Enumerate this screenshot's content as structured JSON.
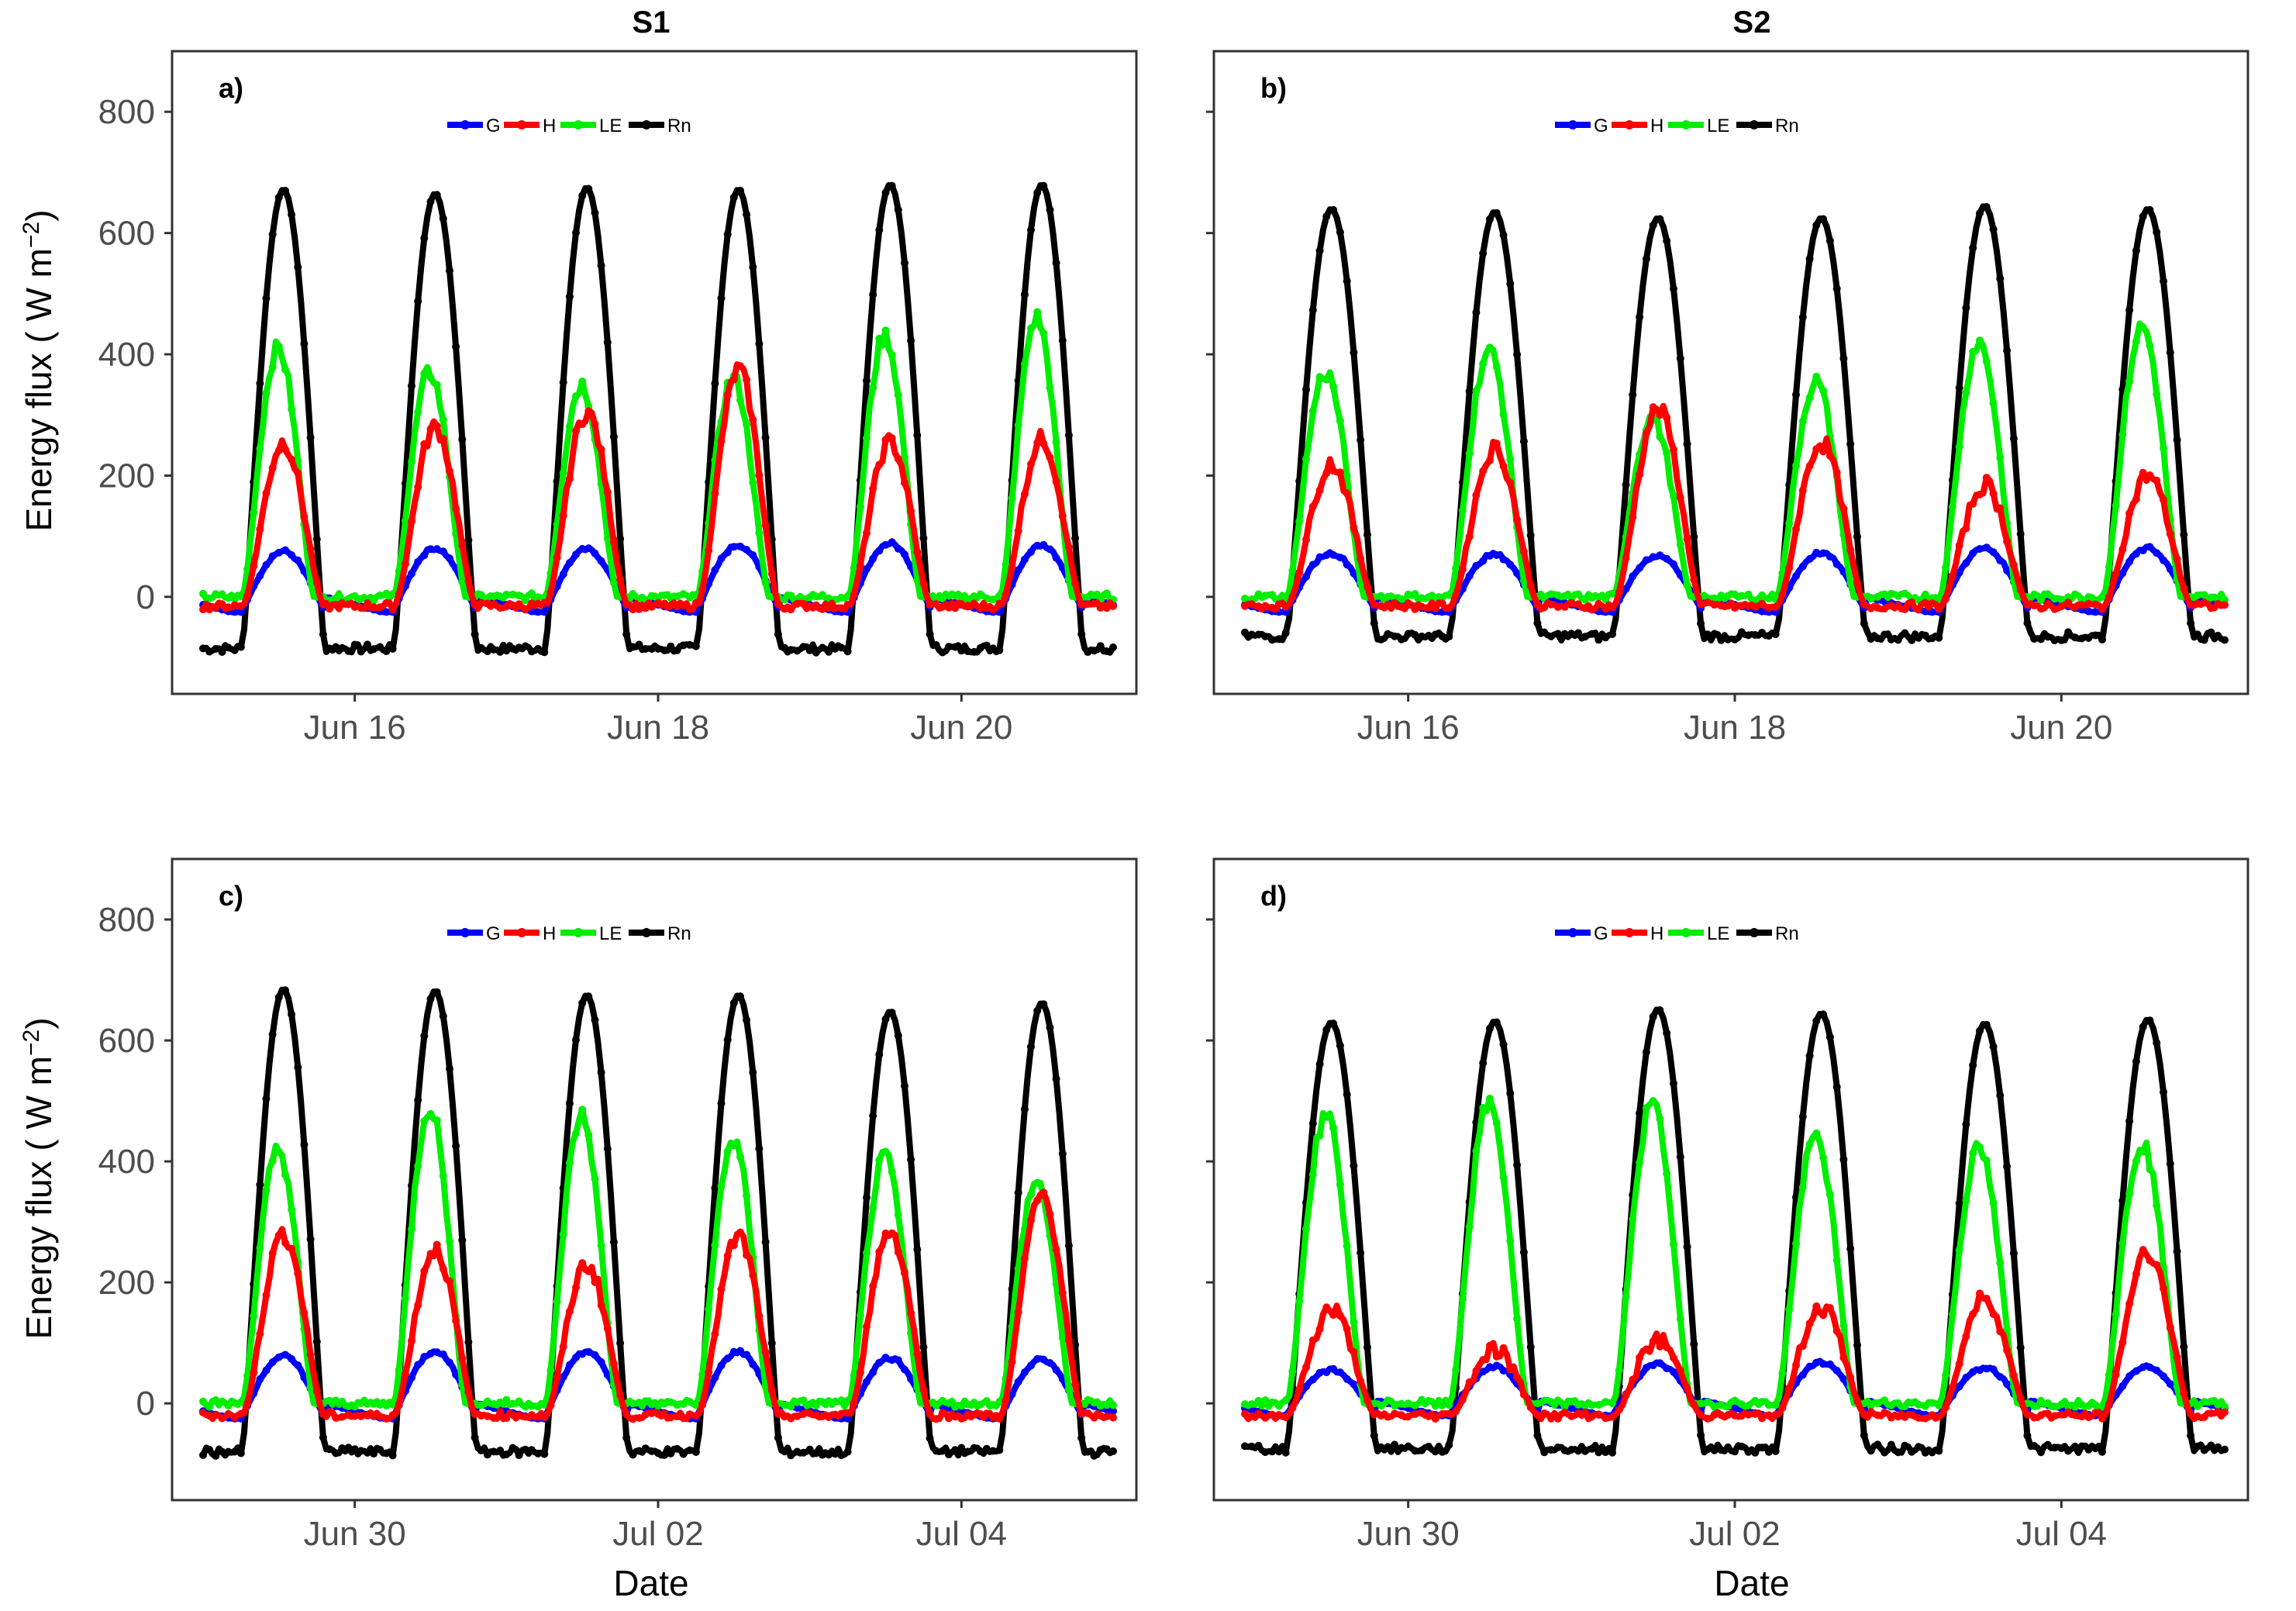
{
  "figure": {
    "columns": [
      "S1",
      "S2"
    ],
    "ylabel": "Energy flux ( W m",
    "ylabel_sup": "−2",
    "ylabel_end": ")",
    "xlabel": "Date"
  },
  "colors": {
    "G": "#0000ff",
    "H": "#ff0000",
    "LE": "#00ee00",
    "Rn": "#000000"
  },
  "chart_data": [
    {
      "panel": "a)",
      "column": "S1",
      "type": "line",
      "x_ticks": [
        "Jun 16",
        "Jun 18",
        "Jun 20"
      ],
      "x_range_days": [
        0,
        6
      ],
      "tick_days": [
        1.0,
        3.0,
        5.0
      ],
      "ylim": [
        -160,
        900
      ],
      "y_ticks": [
        0,
        200,
        400,
        600,
        800
      ],
      "legend": [
        "G",
        "H",
        "LE",
        "Rn"
      ],
      "series": [
        {
          "name": "Rn",
          "night": -85,
          "peaks": [
            672,
            665,
            675,
            672,
            680,
            680
          ]
        },
        {
          "name": "LE",
          "night": 0,
          "peaks": [
            410,
            370,
            350,
            360,
            430,
            460
          ]
        },
        {
          "name": "H",
          "night": -15,
          "peaks": [
            255,
            280,
            305,
            375,
            255,
            260
          ]
        },
        {
          "name": "G",
          "night": -25,
          "peaks": [
            75,
            80,
            78,
            85,
            88,
            85
          ]
        }
      ]
    },
    {
      "panel": "b)",
      "column": "S2",
      "type": "line",
      "x_ticks": [
        "Jun 16",
        "Jun 18",
        "Jun 20"
      ],
      "x_range_days": [
        0,
        6
      ],
      "tick_days": [
        1.0,
        3.0,
        5.0
      ],
      "ylim": [
        -160,
        900
      ],
      "y_ticks": [
        0,
        200,
        400,
        600,
        800
      ],
      "legend": [
        "G",
        "H",
        "LE",
        "Rn"
      ],
      "series": [
        {
          "name": "Rn",
          "night": -65,
          "peaks": [
            640,
            635,
            625,
            625,
            645,
            640
          ]
        },
        {
          "name": "LE",
          "night": 0,
          "peaks": [
            370,
            405,
            295,
            355,
            420,
            445
          ]
        },
        {
          "name": "H",
          "night": -15,
          "peaks": [
            220,
            245,
            310,
            255,
            185,
            200
          ]
        },
        {
          "name": "G",
          "night": -25,
          "peaks": [
            72,
            70,
            68,
            72,
            80,
            80
          ]
        }
      ]
    },
    {
      "panel": "c)",
      "column": "S1",
      "type": "line",
      "x_ticks": [
        "Jun 30",
        "Jul 02",
        "Jul 04"
      ],
      "x_range_days": [
        0,
        6
      ],
      "tick_days": [
        1.0,
        3.0,
        5.0
      ],
      "ylim": [
        -160,
        900
      ],
      "y_ticks": [
        0,
        200,
        400,
        600,
        800
      ],
      "legend": [
        "G",
        "H",
        "LE",
        "Rn"
      ],
      "series": [
        {
          "name": "Rn",
          "night": -80,
          "peaks": [
            685,
            682,
            675,
            675,
            648,
            662
          ]
        },
        {
          "name": "LE",
          "night": 0,
          "peaks": [
            420,
            490,
            475,
            435,
            405,
            365
          ]
        },
        {
          "name": "H",
          "night": -20,
          "peaks": [
            280,
            255,
            230,
            275,
            285,
            345
          ]
        },
        {
          "name": "G",
          "night": -25,
          "peaks": [
            78,
            85,
            85,
            85,
            75,
            72
          ]
        }
      ]
    },
    {
      "panel": "d)",
      "column": "S2",
      "type": "line",
      "x_ticks": [
        "Jun 30",
        "Jul 02",
        "Jul 04"
      ],
      "x_range_days": [
        0,
        6
      ],
      "tick_days": [
        1.0,
        3.0,
        5.0
      ],
      "ylim": [
        -160,
        900
      ],
      "y_ticks": [
        0,
        200,
        400,
        600,
        800
      ],
      "legend": [
        "G",
        "H",
        "LE",
        "Rn"
      ],
      "series": [
        {
          "name": "Rn",
          "night": -75,
          "peaks": [
            630,
            632,
            652,
            645,
            628,
            635
          ]
        },
        {
          "name": "LE",
          "night": 0,
          "peaks": [
            475,
            495,
            495,
            440,
            420,
            430
          ]
        },
        {
          "name": "H",
          "night": -20,
          "peaks": [
            155,
            90,
            105,
            160,
            175,
            250
          ]
        },
        {
          "name": "G",
          "night": -20,
          "peaks": [
            55,
            60,
            65,
            68,
            58,
            60
          ]
        }
      ]
    }
  ]
}
